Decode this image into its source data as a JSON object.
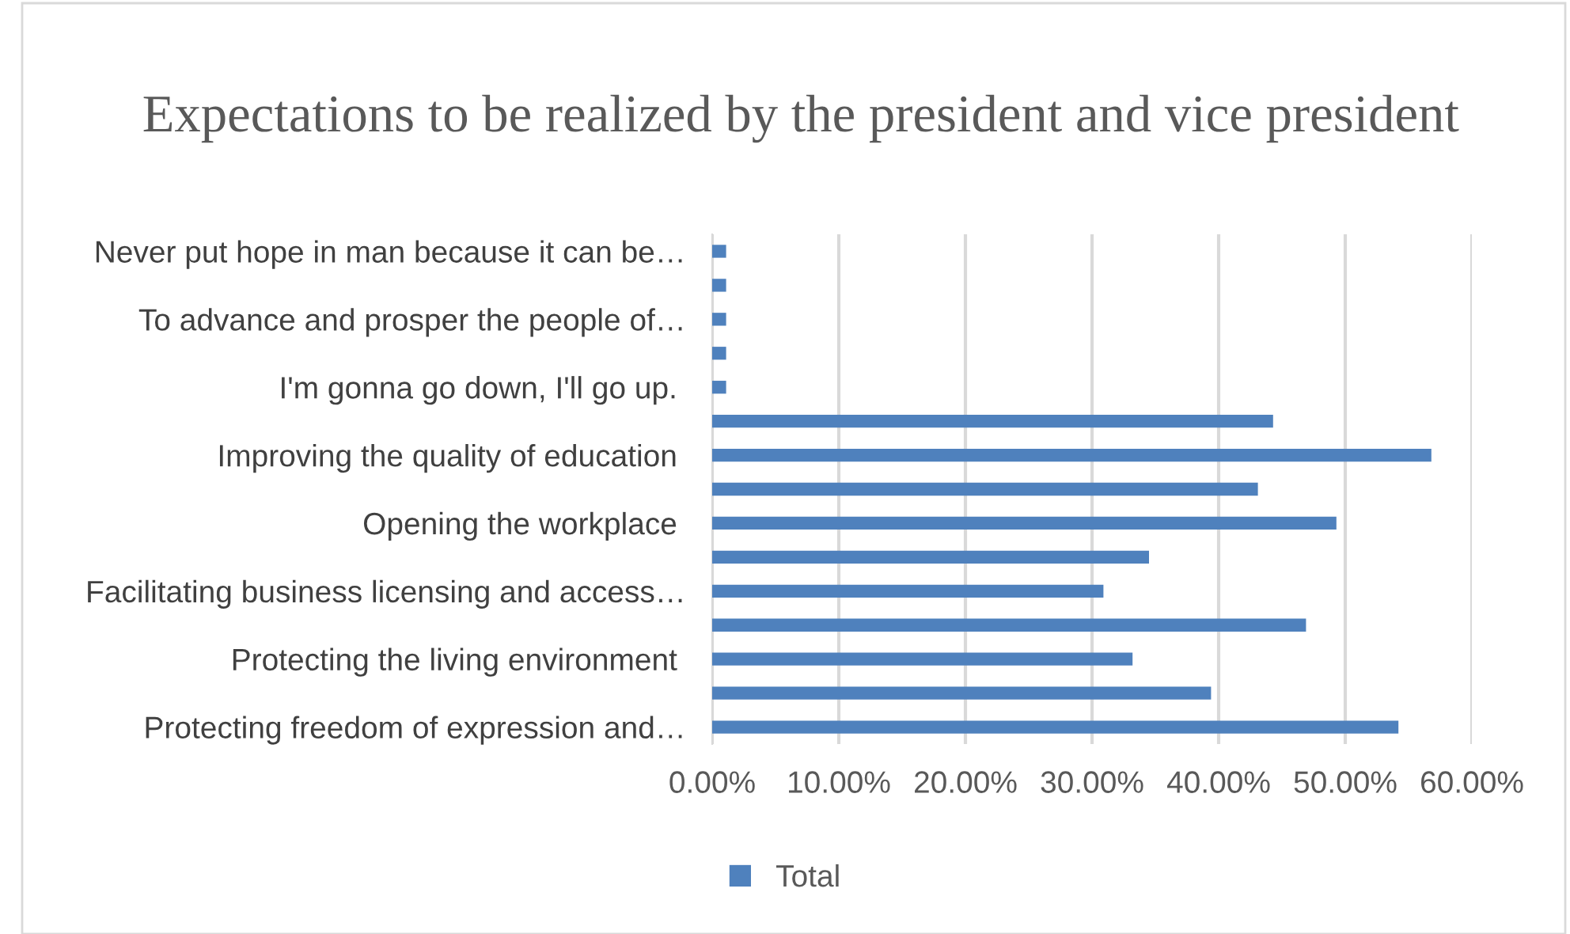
{
  "chart_data": {
    "type": "bar",
    "orientation": "horizontal",
    "title": "Expectations to be realized by the president and vice president",
    "categories": [
      "Never put hope in man because it can be…",
      null,
      "To advance and prosper the people of…",
      null,
      "I'm gonna go down, I'll go up. ",
      null,
      "Improving the quality of education ",
      null,
      "Opening the workplace ",
      null,
      "Facilitating business licensing and access…",
      null,
      "Protecting the living environment ",
      null,
      "Protecting freedom of expression and…"
    ],
    "series": [
      {
        "name": "Total",
        "color": "#4f81bd",
        "values": [
          1.1,
          1.1,
          1.1,
          1.1,
          1.1,
          44.3,
          56.8,
          43.1,
          49.3,
          34.5,
          30.9,
          46.9,
          33.2,
          39.4,
          54.2
        ]
      }
    ],
    "xlim": [
      0,
      60
    ],
    "xticks": [
      {
        "value": 0,
        "label": "0.00%"
      },
      {
        "value": 10,
        "label": "10.00%"
      },
      {
        "value": 20,
        "label": "20.00%"
      },
      {
        "value": 30,
        "label": "30.00%"
      },
      {
        "value": 40,
        "label": "40.00%"
      },
      {
        "value": 50,
        "label": "50.00%"
      },
      {
        "value": 60,
        "label": "60.00%"
      }
    ],
    "grid": "x",
    "legend": "bottom"
  }
}
